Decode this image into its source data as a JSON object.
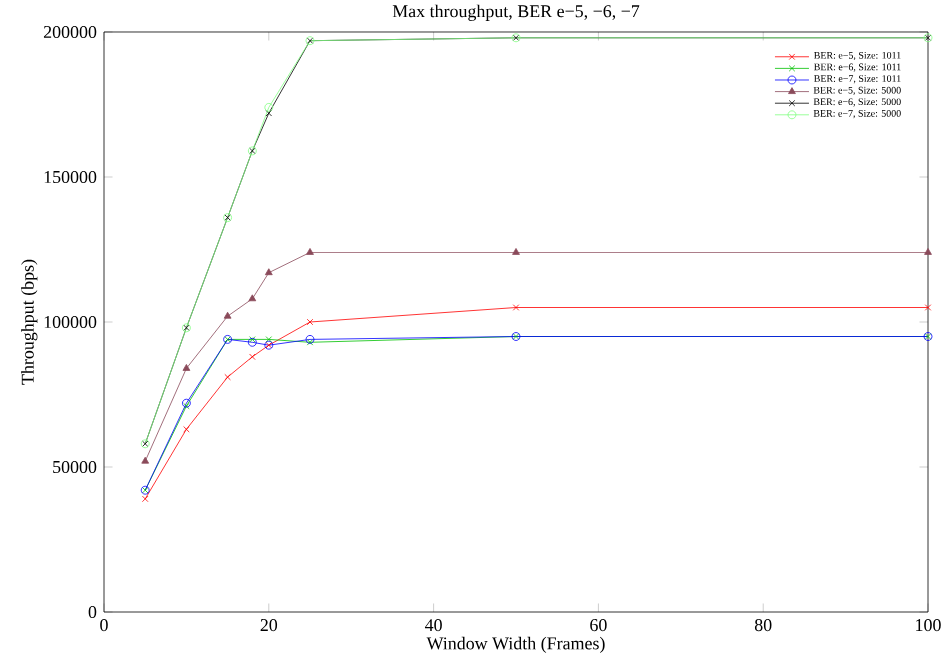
{
  "chart_data": {
    "type": "line",
    "title": "Max throughput, BER e−5, −6, −7",
    "xlabel": "Window Width (Frames)",
    "ylabel": "Throughput (bps)",
    "x": [
      5,
      10,
      15,
      18,
      20,
      25,
      50,
      100
    ],
    "series": [
      {
        "name": "BER: e−5, Size: 1011",
        "color": "#ff0000",
        "marker": "cross",
        "values": [
          39000,
          63000,
          81000,
          88000,
          92000,
          100000,
          105000,
          105000
        ]
      },
      {
        "name": "BER: e−6, Size: 1011",
        "color": "#00c000",
        "marker": "cross",
        "values": [
          42000,
          71000,
          94000,
          94000,
          94000,
          93000,
          95000,
          95000
        ]
      },
      {
        "name": "BER: e−7, Size: 1011",
        "color": "#0000ff",
        "marker": "circle",
        "values": [
          42000,
          72000,
          94000,
          93000,
          92000,
          94000,
          95000,
          95000
        ]
      },
      {
        "name": "BER: e−5, Size: 5000",
        "color": "#8a4a5a",
        "marker": "triangle",
        "values": [
          52000,
          84000,
          102000,
          108000,
          117000,
          124000,
          124000,
          124000
        ]
      },
      {
        "name": "BER: e−6, Size: 5000",
        "color": "#000000",
        "marker": "cross",
        "values": [
          58000,
          98000,
          136000,
          159000,
          172000,
          197000,
          198000,
          198000
        ]
      },
      {
        "name": "BER: e−7, Size: 5000",
        "color": "#80ff80",
        "marker": "circle",
        "values": [
          58000,
          98000,
          136000,
          159000,
          174000,
          197000,
          198000,
          198000
        ]
      }
    ],
    "xlim": [
      0,
      100
    ],
    "xticks": [
      0,
      20,
      40,
      60,
      80,
      100
    ],
    "ylim": [
      0,
      200000
    ],
    "yticks": [
      0,
      50000,
      100000,
      150000,
      200000
    ],
    "grid": false,
    "legend": "top right",
    "line_style": "solid"
  }
}
